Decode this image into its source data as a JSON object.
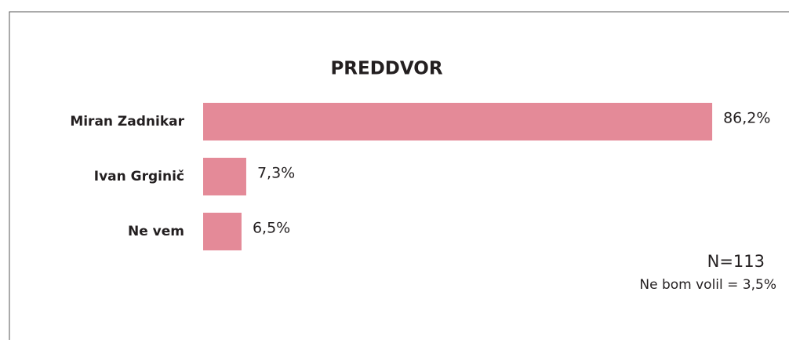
{
  "chart_data": {
    "type": "bar",
    "orientation": "horizontal",
    "title": "PREDDVOR",
    "categories": [
      "Miran Zadnikar",
      "Ivan Grginič",
      "Ne vem"
    ],
    "values": [
      86.2,
      7.3,
      6.5
    ],
    "value_labels": [
      "86,2%",
      "7,3%",
      "6,5%"
    ],
    "color": "#e48a98",
    "annotations": [
      "N=113",
      "Ne bom volil = 3,5%"
    ]
  }
}
